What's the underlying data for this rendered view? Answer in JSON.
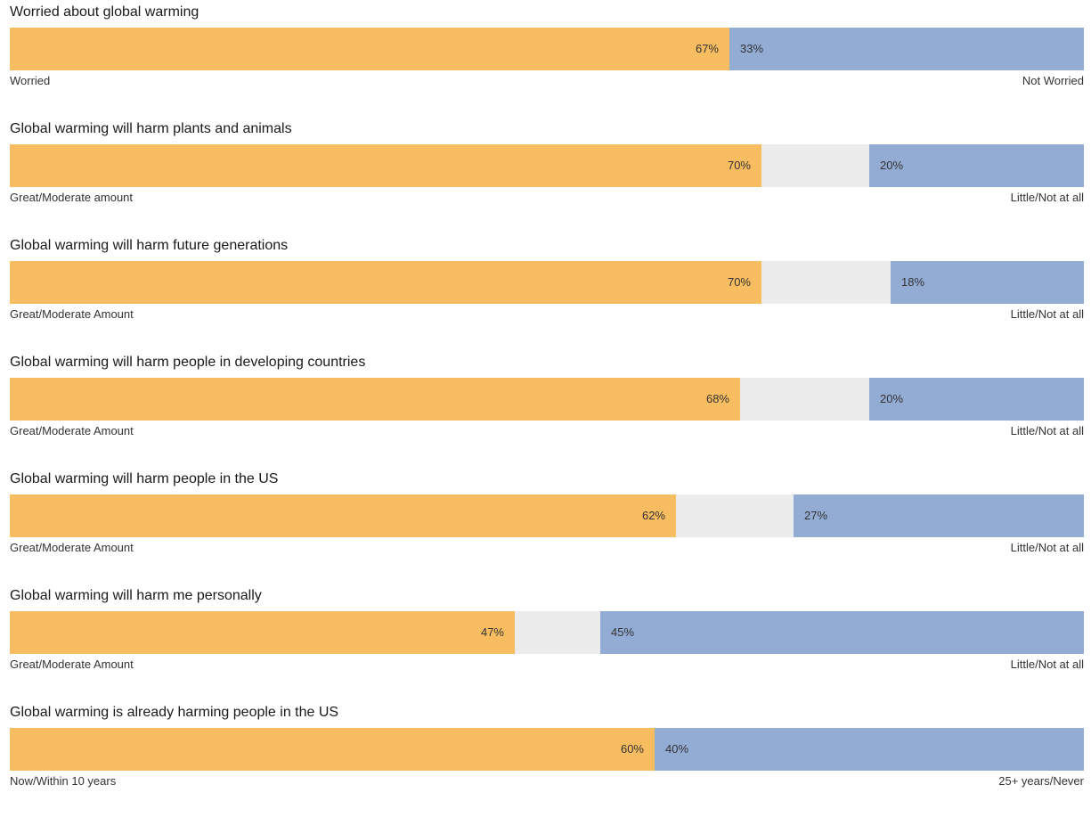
{
  "colors": {
    "left_bar": "#f7bd60",
    "right_bar": "#92acd4",
    "track": "#ececec"
  },
  "chart_data": {
    "type": "bar",
    "orientation": "horizontal-diverging",
    "unit": "%",
    "xlim": [
      0,
      100
    ],
    "rows": [
      {
        "title": "Worried about global warming",
        "left_label": "Worried",
        "right_label": "Not Worried",
        "left_value": 67,
        "right_value": 33,
        "left_text": "67%",
        "right_text": "33%"
      },
      {
        "title": "Global warming will harm plants and animals",
        "left_label": "Great/Moderate amount",
        "right_label": "Little/Not at all",
        "left_value": 70,
        "right_value": 20,
        "left_text": "70%",
        "right_text": "20%"
      },
      {
        "title": "Global warming will harm future generations",
        "left_label": "Great/Moderate Amount",
        "right_label": "Little/Not at all",
        "left_value": 70,
        "right_value": 18,
        "left_text": "70%",
        "right_text": "18%"
      },
      {
        "title": "Global warming will harm people in developing countries",
        "left_label": "Great/Moderate Amount",
        "right_label": "Little/Not at all",
        "left_value": 68,
        "right_value": 20,
        "left_text": "68%",
        "right_text": "20%"
      },
      {
        "title": "Global warming will harm people in the US",
        "left_label": "Great/Moderate Amount",
        "right_label": "Little/Not at all",
        "left_value": 62,
        "right_value": 27,
        "left_text": "62%",
        "right_text": "27%"
      },
      {
        "title": "Global warming will harm me personally",
        "left_label": "Great/Moderate Amount",
        "right_label": "Little/Not at all",
        "left_value": 47,
        "right_value": 45,
        "left_text": "47%",
        "right_text": "45%"
      },
      {
        "title": "Global warming is already harming people in the US",
        "left_label": "Now/Within 10 years",
        "right_label": "25+ years/Never",
        "left_value": 60,
        "right_value": 40,
        "left_text": "60%",
        "right_text": "40%"
      }
    ]
  }
}
